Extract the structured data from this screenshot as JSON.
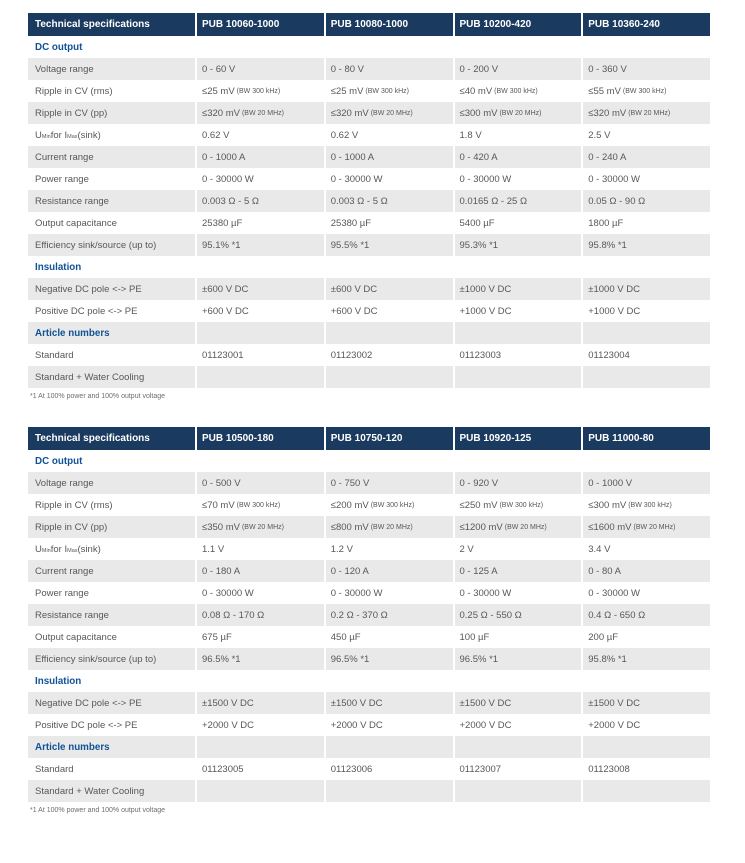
{
  "footnote": "*1 At 100% power and 100% output voltage",
  "colors": {
    "header_bg": "#1a3a5f",
    "header_text": "#ffffff",
    "section_title_text": "#0f5296",
    "row_alt_bg": "#e9e9e9",
    "body_text": "#58585a"
  },
  "tables": [
    {
      "header": [
        "Technical specifications",
        "PUB 10060-1000",
        "PUB 10080-1000",
        "PUB 10200-420",
        "PUB 10360-240"
      ],
      "rows": [
        {
          "type": "section",
          "label": "DC output"
        },
        {
          "type": "spec",
          "label": "Voltage range",
          "values": [
            "0 - 60 V",
            "0 - 80 V",
            "0 - 200 V",
            "0 - 360 V"
          ]
        },
        {
          "type": "spec",
          "label": "Ripple in CV (rms)",
          "values": [
            {
              "main": "≤25 mV",
              "note": "(BW 300 kHz)"
            },
            {
              "main": "≤25 mV",
              "note": "(BW 300 kHz)"
            },
            {
              "main": "≤40 mV",
              "note": "(BW 300 kHz)"
            },
            {
              "main": "≤55 mV",
              "note": "(BW 300 kHz)"
            }
          ]
        },
        {
          "type": "spec",
          "label": "Ripple in CV (pp)",
          "values": [
            {
              "main": "≤320 mV",
              "note": "(BW 20 MHz)"
            },
            {
              "main": "≤320 mV",
              "note": "(BW 20 MHz)"
            },
            {
              "main": "≤300 mV",
              "note": "(BW 20 MHz)"
            },
            {
              "main": "≤320 mV",
              "note": "(BW 20 MHz)"
            }
          ]
        },
        {
          "type": "spec",
          "label_parts": [
            {
              "t": "U"
            },
            {
              "t": "Min",
              "sub": true
            },
            {
              "t": " for I"
            },
            {
              "t": "Max",
              "sub": true
            },
            {
              "t": " (sink)"
            }
          ],
          "values": [
            "0.62 V",
            "0.62 V",
            "1.8 V",
            "2.5 V"
          ]
        },
        {
          "type": "spec",
          "label": "Current range",
          "values": [
            "0 - 1000 A",
            "0 - 1000 A",
            "0 - 420 A",
            "0 - 240 A"
          ]
        },
        {
          "type": "spec",
          "label": "Power range",
          "values": [
            "0 - 30000 W",
            "0 - 30000 W",
            "0 - 30000 W",
            "0 - 30000 W"
          ]
        },
        {
          "type": "spec",
          "label": "Resistance range",
          "values": [
            "0.003 Ω - 5 Ω",
            "0.003 Ω - 5 Ω",
            "0.0165 Ω - 25 Ω",
            "0.05 Ω - 90 Ω"
          ]
        },
        {
          "type": "spec",
          "label": "Output capacitance",
          "values": [
            "25380 µF",
            "25380 µF",
            "5400 µF",
            "1800 µF"
          ]
        },
        {
          "type": "spec",
          "label": "Efficiency sink/source (up to)",
          "values": [
            "95.1% *1",
            "95.5% *1",
            "95.3% *1",
            "95.8% *1"
          ]
        },
        {
          "type": "section",
          "label": "Insulation"
        },
        {
          "type": "spec",
          "label": "Negative DC pole <-> PE",
          "values": [
            "±600 V DC",
            "±600 V DC",
            "±1000 V DC",
            "±1000 V DC"
          ]
        },
        {
          "type": "spec",
          "label": "Positive DC pole <-> PE",
          "values": [
            "+600 V DC",
            "+600 V DC",
            "+1000 V DC",
            "+1000 V DC"
          ]
        },
        {
          "type": "section",
          "label": "Article numbers"
        },
        {
          "type": "spec",
          "label": "Standard",
          "values": [
            "01123001",
            "01123002",
            "01123003",
            "01123004"
          ]
        },
        {
          "type": "spec",
          "label": "Standard + Water Cooling",
          "values": [
            "",
            "",
            "",
            ""
          ]
        }
      ]
    },
    {
      "header": [
        "Technical specifications",
        "PUB 10500-180",
        "PUB 10750-120",
        "PUB 10920-125",
        "PUB 11000-80"
      ],
      "rows": [
        {
          "type": "section",
          "label": "DC output"
        },
        {
          "type": "spec",
          "label": "Voltage range",
          "values": [
            "0 - 500 V",
            "0 - 750 V",
            "0 - 920 V",
            "0 - 1000 V"
          ]
        },
        {
          "type": "spec",
          "label": "Ripple in CV (rms)",
          "values": [
            {
              "main": "≤70 mV",
              "note": "(BW 300 kHz)"
            },
            {
              "main": "≤200 mV",
              "note": "(BW 300 kHz)"
            },
            {
              "main": "≤250 mV",
              "note": "(BW 300 kHz)"
            },
            {
              "main": "≤300 mV",
              "note": "(BW 300 kHz)"
            }
          ]
        },
        {
          "type": "spec",
          "label": "Ripple in CV (pp)",
          "values": [
            {
              "main": "≤350 mV",
              "note": "(BW 20 MHz)"
            },
            {
              "main": "≤800 mV",
              "note": "(BW 20 MHz)"
            },
            {
              "main": "≤1200 mV",
              "note": "(BW 20 MHz)"
            },
            {
              "main": "≤1600 mV",
              "note": "(BW 20 MHz)"
            }
          ]
        },
        {
          "type": "spec",
          "label_parts": [
            {
              "t": "U"
            },
            {
              "t": "Min",
              "sub": true
            },
            {
              "t": " for I"
            },
            {
              "t": "Max",
              "sub": true
            },
            {
              "t": " (sink)"
            }
          ],
          "values": [
            "1.1 V",
            "1.2 V",
            "2 V",
            "3.4 V"
          ]
        },
        {
          "type": "spec",
          "label": "Current range",
          "values": [
            "0 - 180 A",
            "0 - 120 A",
            "0 - 125 A",
            "0 - 80 A"
          ]
        },
        {
          "type": "spec",
          "label": "Power range",
          "values": [
            "0 - 30000 W",
            "0 - 30000 W",
            "0 - 30000 W",
            "0 - 30000 W"
          ]
        },
        {
          "type": "spec",
          "label": "Resistance range",
          "values": [
            "0.08 Ω - 170 Ω",
            "0.2 Ω - 370 Ω",
            "0.25 Ω - 550 Ω",
            "0.4 Ω - 650 Ω"
          ]
        },
        {
          "type": "spec",
          "label": "Output capacitance",
          "values": [
            "675 µF",
            "450 µF",
            "100 µF",
            "200 µF"
          ]
        },
        {
          "type": "spec",
          "label": "Efficiency sink/source (up to)",
          "values": [
            "96.5% *1",
            "96.5% *1",
            "96.5% *1",
            "95.8% *1"
          ]
        },
        {
          "type": "section",
          "label": "Insulation"
        },
        {
          "type": "spec",
          "label": "Negative DC pole <-> PE",
          "values": [
            "±1500 V DC",
            "±1500 V DC",
            "±1500 V DC",
            "±1500 V DC"
          ]
        },
        {
          "type": "spec",
          "label": "Positive DC pole <-> PE",
          "values": [
            "+2000 V DC",
            "+2000 V DC",
            "+2000 V DC",
            "+2000 V DC"
          ]
        },
        {
          "type": "section",
          "label": "Article numbers"
        },
        {
          "type": "spec",
          "label": "Standard",
          "values": [
            "01123005",
            "01123006",
            "01123007",
            "01123008"
          ]
        },
        {
          "type": "spec",
          "label": "Standard + Water Cooling",
          "values": [
            "",
            "",
            "",
            ""
          ]
        }
      ]
    }
  ]
}
